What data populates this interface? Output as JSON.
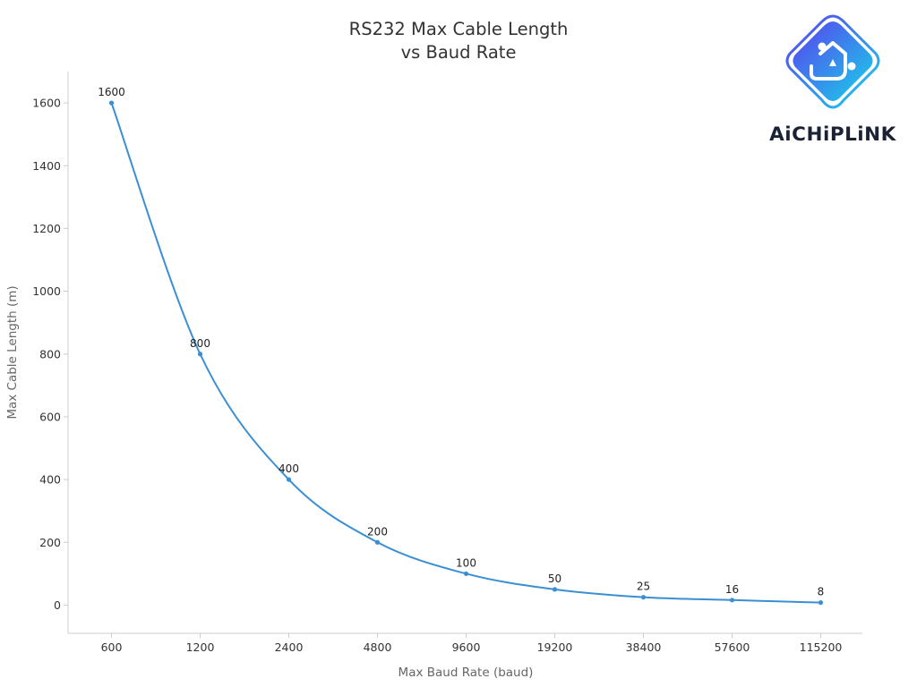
{
  "chart_data": {
    "type": "line",
    "title_line1": "RS232 Max Cable Length",
    "title_line2": "vs Baud Rate",
    "xlabel": "Max Baud Rate (baud)",
    "ylabel": "Max Cable Length (m)",
    "categories": [
      "600",
      "1200",
      "2400",
      "4800",
      "9600",
      "19200",
      "38400",
      "57600",
      "115200"
    ],
    "series": [
      {
        "values": [
          1600,
          800,
          400,
          200,
          100,
          50,
          25,
          16,
          8
        ]
      }
    ],
    "data_labels": [
      "1600",
      "800",
      "400",
      "200",
      "100",
      "50",
      "25",
      "16",
      "8"
    ],
    "yticks": [
      0,
      200,
      400,
      600,
      800,
      1000,
      1200,
      1400,
      1600
    ],
    "ylim": [
      -90,
      1700
    ],
    "grid": false,
    "line_color": "#3a8fd4"
  },
  "logo": {
    "text": "AiCHiPLiNK",
    "gradient_start": "#5a3ff0",
    "gradient_end": "#17d3e8"
  }
}
